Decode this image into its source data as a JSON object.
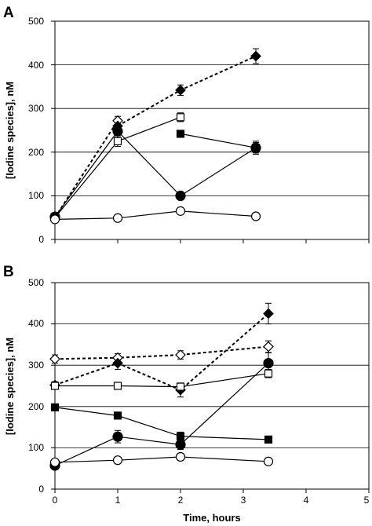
{
  "chart_data": [
    {
      "panel": "A",
      "type": "line",
      "xlabel": "",
      "ylabel": "[Iodine species], nM",
      "xlim": [
        0,
        5
      ],
      "ylim": [
        0,
        500
      ],
      "xticks": [
        0,
        1,
        2,
        3,
        4,
        5
      ],
      "yticks": [
        "0",
        "100",
        "200",
        "300",
        "400",
        "500"
      ],
      "grid": "horizontal",
      "series": [
        {
          "marker": "diamond-open",
          "line": "dashed",
          "x": [
            0,
            1
          ],
          "y": [
            50,
            272
          ],
          "err": [
            0,
            10
          ]
        },
        {
          "marker": "diamond-filled",
          "line": "dashed",
          "x": [
            1,
            2,
            3.2
          ],
          "y": [
            260,
            342,
            420
          ],
          "err": [
            0,
            12,
            17
          ]
        },
        {
          "marker": "square-open",
          "line": "solid",
          "x": [
            0,
            1,
            2
          ],
          "y": [
            50,
            225,
            280
          ],
          "err": [
            0,
            12,
            10
          ]
        },
        {
          "marker": "square-filled",
          "line": "solid",
          "x": [
            2,
            3.2
          ],
          "y": [
            242,
            210
          ],
          "err": [
            6,
            12
          ]
        },
        {
          "marker": "circle-filled",
          "line": "solid",
          "x": [
            0,
            1,
            2,
            3.2
          ],
          "y": [
            52,
            248,
            100,
            210
          ],
          "err": [
            0,
            0,
            0,
            15
          ]
        },
        {
          "marker": "circle-open",
          "line": "solid",
          "x": [
            0,
            1,
            2,
            3.2
          ],
          "y": [
            46,
            49,
            65,
            53
          ],
          "err": [
            0,
            0,
            6,
            0
          ]
        }
      ]
    },
    {
      "panel": "B",
      "type": "line",
      "xlabel": "Time, hours",
      "ylabel": "[Iodine species], nM",
      "xlim": [
        0,
        5
      ],
      "ylim": [
        0,
        500
      ],
      "xticks": [
        "0",
        "1",
        "2",
        "3",
        "4",
        "5"
      ],
      "yticks": [
        "0",
        "100",
        "200",
        "300",
        "400",
        "500"
      ],
      "grid": "horizontal",
      "series": [
        {
          "marker": "diamond-open",
          "line": "dashed",
          "x": [
            0,
            1,
            2,
            3.4
          ],
          "y": [
            315,
            318,
            325,
            345
          ],
          "err": [
            10,
            10,
            10,
            14
          ]
        },
        {
          "marker": "diamond-filled",
          "line": "dashed",
          "x": [
            0,
            1,
            2,
            3.4
          ],
          "y": [
            252,
            305,
            240,
            425
          ],
          "err": [
            8,
            15,
            17,
            25
          ]
        },
        {
          "marker": "square-open",
          "line": "solid",
          "x": [
            0,
            1,
            2,
            3.4
          ],
          "y": [
            250,
            250,
            248,
            280
          ],
          "err": [
            6,
            6,
            8,
            10
          ]
        },
        {
          "marker": "square-filled",
          "line": "solid",
          "x": [
            0,
            1,
            2,
            3.4
          ],
          "y": [
            198,
            178,
            128,
            120
          ],
          "err": [
            6,
            8,
            10,
            6
          ]
        },
        {
          "marker": "circle-filled",
          "line": "solid",
          "x": [
            0,
            1,
            2,
            3.4
          ],
          "y": [
            57,
            127,
            108,
            305
          ],
          "err": [
            8,
            15,
            12,
            25
          ]
        },
        {
          "marker": "circle-open",
          "line": "solid",
          "x": [
            0,
            1,
            2,
            3.4
          ],
          "y": [
            65,
            70,
            78,
            67
          ],
          "err": [
            5,
            5,
            8,
            8
          ]
        }
      ]
    }
  ],
  "panels": {
    "a": {
      "letter": "A",
      "ylabel": "[Iodine species], nM",
      "yticks": [
        "0",
        "100",
        "200",
        "300",
        "400",
        "500"
      ]
    },
    "b": {
      "letter": "B",
      "ylabel": "[Iodine species], nM",
      "xlabel": "Time, hours",
      "yticks": [
        "0",
        "100",
        "200",
        "300",
        "400",
        "500"
      ],
      "xticks": [
        "0",
        "1",
        "2",
        "3",
        "4",
        "5"
      ]
    }
  }
}
